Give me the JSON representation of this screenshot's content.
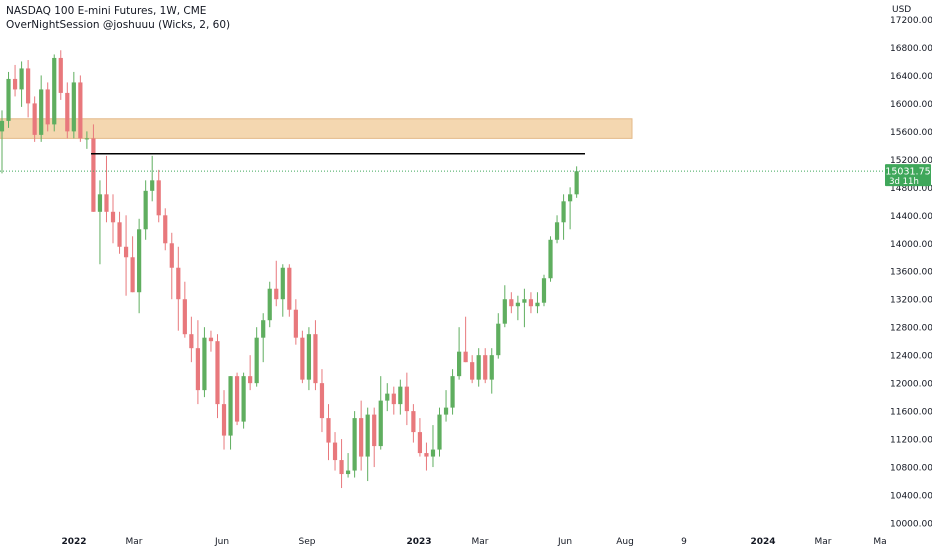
{
  "header": {
    "title": "NASDAQ 100 E-mini Futures, 1W, CME",
    "indicator": "OverNightSession @joshuuu (Wicks, 2, 60)"
  },
  "price_tag": {
    "price": "15031.75",
    "countdown": "3d 11h"
  },
  "colors": {
    "up": "#5fae5f",
    "down": "#e8787c",
    "zone_fill": "#f4d7b0",
    "zone_stroke": "#e3b887",
    "level_line": "#000000",
    "price_tag": "#3fa75a",
    "grid_text": "#131722"
  },
  "chart_data": {
    "type": "candlestick",
    "currency": "USD",
    "timeframe": "1W",
    "ylim": [
      9900,
      17450
    ],
    "y_ticks": [
      10000,
      10400,
      10800,
      11200,
      11600,
      12000,
      12400,
      12800,
      13200,
      13600,
      14000,
      14400,
      14800,
      15200,
      15600,
      16000,
      16400,
      16800,
      17200
    ],
    "x_ticks": [
      "2022",
      "Mar",
      "Jun",
      "Sep",
      "2023",
      "Mar",
      "Jun",
      "Aug",
      "9",
      "2024",
      "Mar",
      "Ma"
    ],
    "last_price": 15031.75,
    "resistance_level": 15280,
    "supply_zone": [
      15500,
      15780
    ],
    "candles": [
      {
        "o": 15600,
        "h": 15900,
        "l": 15000,
        "c": 15750
      },
      {
        "o": 15750,
        "h": 16450,
        "l": 15650,
        "c": 16350
      },
      {
        "o": 16350,
        "h": 16550,
        "l": 16100,
        "c": 16200
      },
      {
        "o": 16200,
        "h": 16600,
        "l": 15950,
        "c": 16500
      },
      {
        "o": 16500,
        "h": 16620,
        "l": 15800,
        "c": 16000
      },
      {
        "o": 16000,
        "h": 16100,
        "l": 15450,
        "c": 15550
      },
      {
        "o": 15550,
        "h": 16400,
        "l": 15450,
        "c": 16200
      },
      {
        "o": 16200,
        "h": 16300,
        "l": 15600,
        "c": 15700
      },
      {
        "o": 15700,
        "h": 16700,
        "l": 15600,
        "c": 16650
      },
      {
        "o": 16650,
        "h": 16760,
        "l": 16050,
        "c": 16150
      },
      {
        "o": 16150,
        "h": 16300,
        "l": 15500,
        "c": 15600
      },
      {
        "o": 15600,
        "h": 16450,
        "l": 15500,
        "c": 16300
      },
      {
        "o": 16300,
        "h": 16400,
        "l": 15450,
        "c": 15500
      },
      {
        "o": 15500,
        "h": 15600,
        "l": 15350,
        "c": 15500
      },
      {
        "o": 15500,
        "h": 15700,
        "l": 14450,
        "c": 14450
      },
      {
        "o": 14450,
        "h": 14900,
        "l": 13700,
        "c": 14700
      },
      {
        "o": 14700,
        "h": 15250,
        "l": 14300,
        "c": 14450
      },
      {
        "o": 14450,
        "h": 14700,
        "l": 14000,
        "c": 14300
      },
      {
        "o": 14300,
        "h": 14450,
        "l": 13850,
        "c": 13950
      },
      {
        "o": 13950,
        "h": 14400,
        "l": 13250,
        "c": 13800
      },
      {
        "o": 13800,
        "h": 14100,
        "l": 13300,
        "c": 13300
      },
      {
        "o": 13300,
        "h": 14350,
        "l": 13000,
        "c": 14200
      },
      {
        "o": 14200,
        "h": 14900,
        "l": 14050,
        "c": 14750
      },
      {
        "o": 14750,
        "h": 15250,
        "l": 14600,
        "c": 14900
      },
      {
        "o": 14900,
        "h": 15050,
        "l": 14300,
        "c": 14400
      },
      {
        "o": 14400,
        "h": 14500,
        "l": 13900,
        "c": 14000
      },
      {
        "o": 14000,
        "h": 14150,
        "l": 13200,
        "c": 13650
      },
      {
        "o": 13650,
        "h": 13950,
        "l": 12750,
        "c": 13200
      },
      {
        "o": 13200,
        "h": 13450,
        "l": 12650,
        "c": 12700
      },
      {
        "o": 12700,
        "h": 12950,
        "l": 12300,
        "c": 12500
      },
      {
        "o": 12500,
        "h": 12900,
        "l": 11700,
        "c": 11900
      },
      {
        "o": 11900,
        "h": 12800,
        "l": 11800,
        "c": 12650
      },
      {
        "o": 12650,
        "h": 12750,
        "l": 12450,
        "c": 12600
      },
      {
        "o": 12600,
        "h": 12700,
        "l": 11500,
        "c": 11700
      },
      {
        "o": 11700,
        "h": 11900,
        "l": 11050,
        "c": 11250
      },
      {
        "o": 11250,
        "h": 12100,
        "l": 11050,
        "c": 12100
      },
      {
        "o": 12100,
        "h": 12150,
        "l": 11400,
        "c": 11450
      },
      {
        "o": 11450,
        "h": 12150,
        "l": 11350,
        "c": 12100
      },
      {
        "o": 12100,
        "h": 12400,
        "l": 11900,
        "c": 12000
      },
      {
        "o": 12000,
        "h": 12800,
        "l": 11950,
        "c": 12650
      },
      {
        "o": 12650,
        "h": 13000,
        "l": 12300,
        "c": 12900
      },
      {
        "o": 12900,
        "h": 13450,
        "l": 12800,
        "c": 13350
      },
      {
        "o": 13350,
        "h": 13750,
        "l": 13100,
        "c": 13200
      },
      {
        "o": 13200,
        "h": 13700,
        "l": 12950,
        "c": 13650
      },
      {
        "o": 13650,
        "h": 13700,
        "l": 12950,
        "c": 13050
      },
      {
        "o": 13050,
        "h": 13200,
        "l": 12550,
        "c": 12650
      },
      {
        "o": 12650,
        "h": 12750,
        "l": 12000,
        "c": 12050
      },
      {
        "o": 12050,
        "h": 12800,
        "l": 11900,
        "c": 12700
      },
      {
        "o": 12700,
        "h": 12900,
        "l": 11900,
        "c": 12000
      },
      {
        "o": 12000,
        "h": 12200,
        "l": 11300,
        "c": 11500
      },
      {
        "o": 11500,
        "h": 11700,
        "l": 10900,
        "c": 11150
      },
      {
        "o": 11150,
        "h": 11300,
        "l": 10750,
        "c": 10900
      },
      {
        "o": 10900,
        "h": 11200,
        "l": 10500,
        "c": 10700
      },
      {
        "o": 10700,
        "h": 11000,
        "l": 10650,
        "c": 10750
      },
      {
        "o": 10750,
        "h": 11600,
        "l": 10650,
        "c": 11500
      },
      {
        "o": 11500,
        "h": 11750,
        "l": 10750,
        "c": 10950
      },
      {
        "o": 10950,
        "h": 11650,
        "l": 10600,
        "c": 11550
      },
      {
        "o": 11550,
        "h": 11650,
        "l": 10800,
        "c": 11100
      },
      {
        "o": 11100,
        "h": 12100,
        "l": 11050,
        "c": 11750
      },
      {
        "o": 11750,
        "h": 12000,
        "l": 11600,
        "c": 11850
      },
      {
        "o": 11850,
        "h": 11950,
        "l": 11550,
        "c": 11700
      },
      {
        "o": 11700,
        "h": 12050,
        "l": 11550,
        "c": 11950
      },
      {
        "o": 11950,
        "h": 12150,
        "l": 11400,
        "c": 11600
      },
      {
        "o": 11600,
        "h": 11700,
        "l": 11150,
        "c": 11300
      },
      {
        "o": 11300,
        "h": 11500,
        "l": 10950,
        "c": 11000
      },
      {
        "o": 11000,
        "h": 11150,
        "l": 10750,
        "c": 10950
      },
      {
        "o": 10950,
        "h": 11400,
        "l": 10800,
        "c": 11050
      },
      {
        "o": 11050,
        "h": 11650,
        "l": 10950,
        "c": 11550
      },
      {
        "o": 11550,
        "h": 11900,
        "l": 11450,
        "c": 11650
      },
      {
        "o": 11650,
        "h": 12200,
        "l": 11550,
        "c": 12100
      },
      {
        "o": 12100,
        "h": 12800,
        "l": 12050,
        "c": 12450
      },
      {
        "o": 12450,
        "h": 12950,
        "l": 12300,
        "c": 12300
      },
      {
        "o": 12300,
        "h": 12400,
        "l": 12000,
        "c": 12050
      },
      {
        "o": 12050,
        "h": 12500,
        "l": 11950,
        "c": 12400
      },
      {
        "o": 12400,
        "h": 12500,
        "l": 12000,
        "c": 12050
      },
      {
        "o": 12050,
        "h": 12500,
        "l": 11850,
        "c": 12400
      },
      {
        "o": 12400,
        "h": 13000,
        "l": 12350,
        "c": 12850
      },
      {
        "o": 12850,
        "h": 13400,
        "l": 12800,
        "c": 13200
      },
      {
        "o": 13200,
        "h": 13300,
        "l": 13000,
        "c": 13100
      },
      {
        "o": 13100,
        "h": 13250,
        "l": 12900,
        "c": 13150
      },
      {
        "o": 13150,
        "h": 13350,
        "l": 12800,
        "c": 13200
      },
      {
        "o": 13200,
        "h": 13300,
        "l": 13000,
        "c": 13100
      },
      {
        "o": 13100,
        "h": 13300,
        "l": 13000,
        "c": 13150
      },
      {
        "o": 13150,
        "h": 13550,
        "l": 13100,
        "c": 13500
      },
      {
        "o": 13500,
        "h": 14100,
        "l": 13450,
        "c": 14050
      },
      {
        "o": 14050,
        "h": 14400,
        "l": 14000,
        "c": 14300
      },
      {
        "o": 14300,
        "h": 14700,
        "l": 14050,
        "c": 14600
      },
      {
        "o": 14600,
        "h": 14800,
        "l": 14200,
        "c": 14700
      },
      {
        "o": 14700,
        "h": 15100,
        "l": 14650,
        "c": 15030
      }
    ]
  }
}
